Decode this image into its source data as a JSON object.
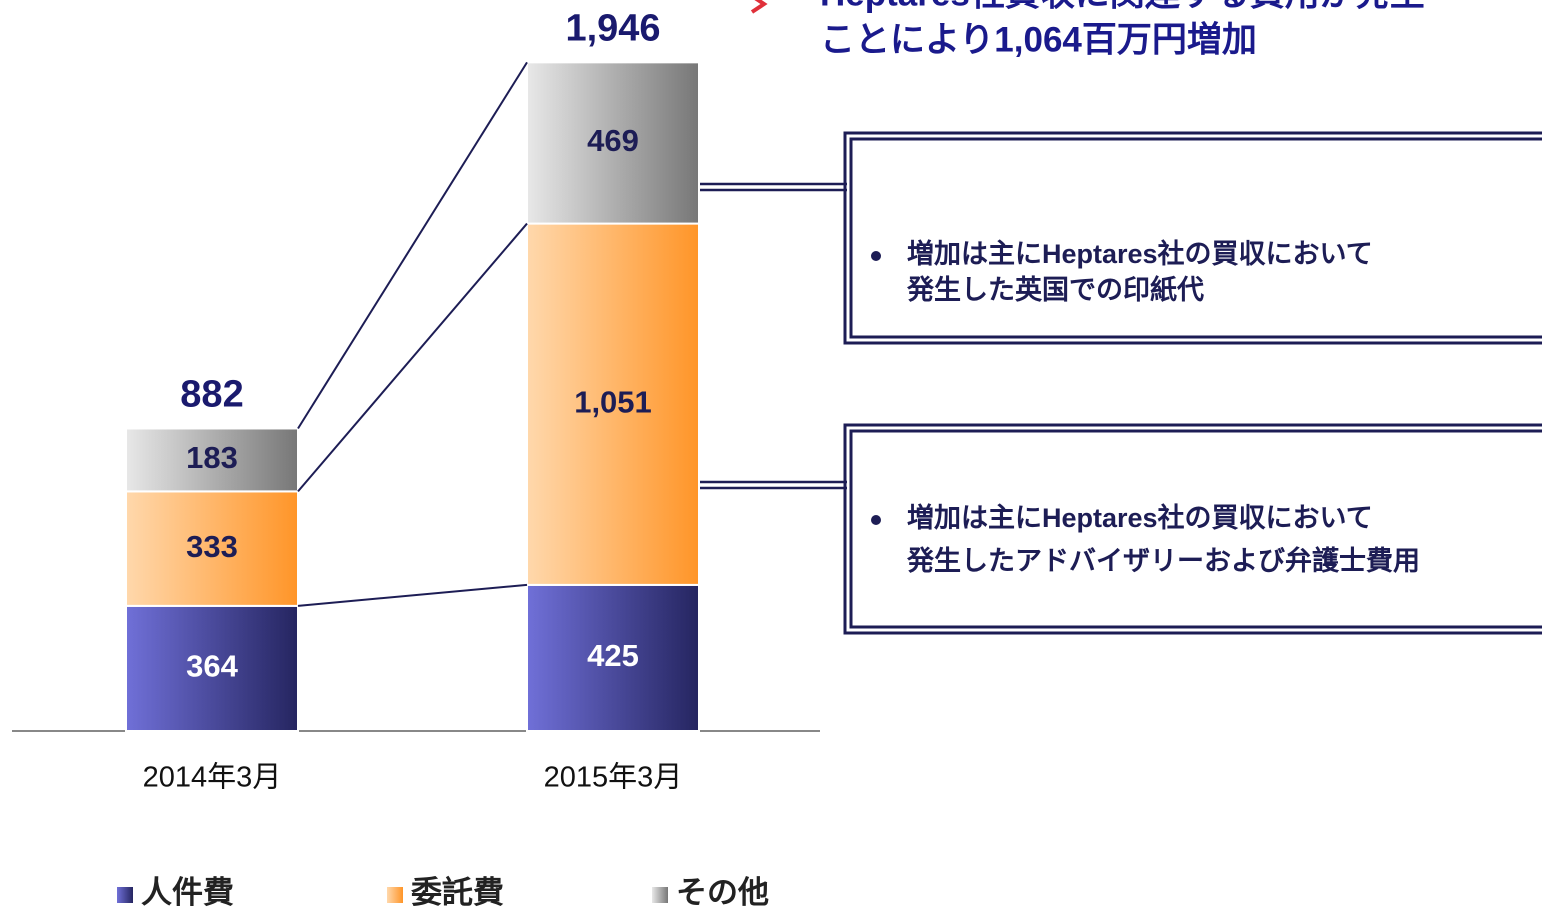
{
  "chart_data": {
    "type": "stacked_bar",
    "categories": [
      "2014年3月",
      "2015年3月"
    ],
    "series": [
      {
        "name": "人件費",
        "color": [
          "#7070d8",
          "#252560"
        ],
        "values": [
          364,
          425
        ]
      },
      {
        "name": "委託費",
        "color": [
          "#ffd8ac",
          "#ff9528"
        ],
        "values": [
          333,
          1051
        ],
        "value_labels": [
          "333",
          "1,051"
        ]
      },
      {
        "name": "その他",
        "color": [
          "#e8e8e8",
          "#777777"
        ],
        "values": [
          183,
          469
        ]
      }
    ],
    "totals": {
      "values": [
        882,
        1946
      ],
      "value_labels": [
        "882",
        "1,946"
      ]
    }
  },
  "annotation": {
    "lines": [
      "Heptares社買収に関連する費用が発生",
      "ことにより1,064百万円増加"
    ]
  },
  "callouts": [
    {
      "lines": [
        "増加は主にHeptares社の買収において",
        "発生した英国での印紙代"
      ]
    },
    {
      "lines": [
        "増加は主にHeptares社の買収において",
        "発生したアドバイザリーおよび弁護士費用"
      ]
    }
  ]
}
